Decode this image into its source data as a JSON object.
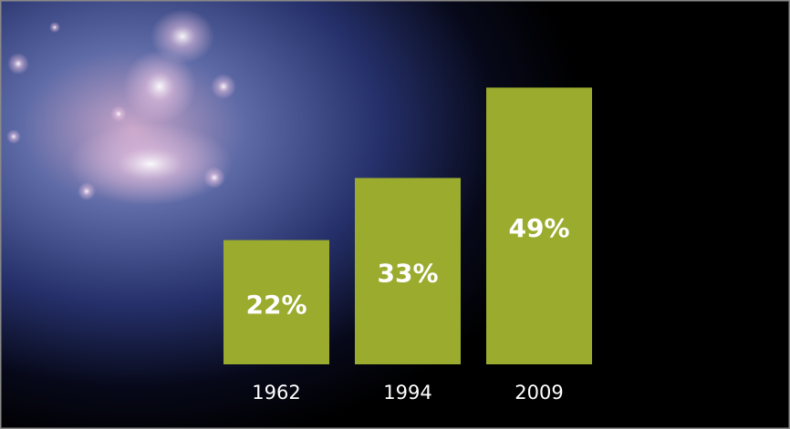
{
  "chart_data": {
    "type": "bar",
    "categories": [
      "1962",
      "1994",
      "2009"
    ],
    "values": [
      22,
      33,
      49
    ],
    "value_labels": [
      "22%",
      "33%",
      "49%"
    ],
    "color": "#9bab2e"
  }
}
